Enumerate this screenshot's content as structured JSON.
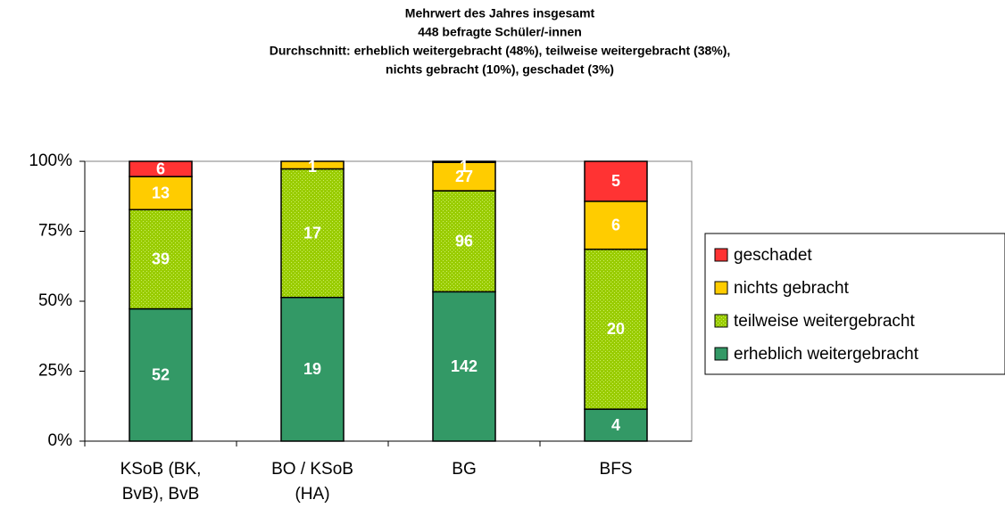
{
  "chart_data": {
    "type": "bar",
    "stacked": "percent",
    "title": [
      "Mehrwert des Jahres insgesamt",
      "448 befragte Schüler/-innen",
      "Durchschnitt: erheblich weitergebracht (48%), teilweise weitergebracht (38%),",
      "nichts gebracht (10%), geschadet (3%)"
    ],
    "categories": [
      [
        "KSoB (BK,",
        "BvB), BvB"
      ],
      [
        "BO / KSoB",
        "(HA)"
      ],
      [
        "BG"
      ],
      [
        "BFS"
      ]
    ],
    "series": [
      {
        "name": "erheblich weitergebracht",
        "color": "#339966",
        "values": [
          52,
          19,
          142,
          4
        ]
      },
      {
        "name": "teilweise weitergebracht",
        "color": "#99cc00",
        "values": [
          39,
          17,
          96,
          20
        ]
      },
      {
        "name": "nichts gebracht",
        "color": "#ffcc00",
        "values": [
          13,
          1,
          27,
          6
        ]
      },
      {
        "name": "geschadet",
        "color": "#ff3333",
        "values": [
          6,
          null,
          1,
          5
        ]
      }
    ],
    "ylim": [
      0,
      100
    ],
    "yticks": [
      {
        "value": 0,
        "label": "0%"
      },
      {
        "value": 25,
        "label": "25%"
      },
      {
        "value": 50,
        "label": "50%"
      },
      {
        "value": 75,
        "label": "75%"
      },
      {
        "value": 100,
        "label": "100%"
      }
    ],
    "legend": "right"
  }
}
